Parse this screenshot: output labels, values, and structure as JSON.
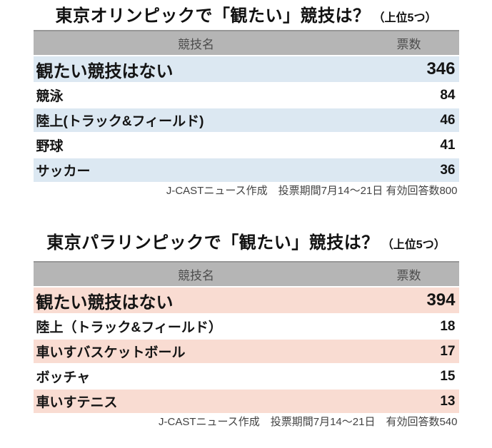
{
  "colors": {
    "olympic_accent": "#dce8f2",
    "paralympic_accent": "#f9dcd2",
    "header_bg": "#b5b5b5",
    "header_border": "#979797",
    "header_text": "#4c4c4c",
    "text": "#141414",
    "note_text": "#424242"
  },
  "chart_data": [
    {
      "type": "table",
      "title": "東京オリンピックで「観たい」競技は？",
      "title_note": "（上位5つ）",
      "columns": {
        "name": "競技名",
        "votes": "票数"
      },
      "accent": "#dce8f2",
      "rows": [
        {
          "name": "観たい競技はない",
          "votes": "346"
        },
        {
          "name": "競泳",
          "votes": "84"
        },
        {
          "name": "陸上(トラック&フィールド)",
          "votes": "46"
        },
        {
          "name": "野球",
          "votes": "41"
        },
        {
          "name": "サッカー",
          "votes": "36"
        }
      ],
      "footer": "J-CASTニュース作成　投票期間7月14〜21日 有効回答数800"
    },
    {
      "type": "table",
      "title": "東京パラリンピックで「観たい」競技は？",
      "title_note": "（上位5つ）",
      "columns": {
        "name": "競技名",
        "votes": "票数"
      },
      "accent": "#f9dcd2",
      "rows": [
        {
          "name": "観たい競技はない",
          "votes": "394"
        },
        {
          "name": "陸上（トラック&フィールド）",
          "votes": "18"
        },
        {
          "name": "車いすバスケットボール",
          "votes": "17"
        },
        {
          "name": "ボッチャ",
          "votes": "15"
        },
        {
          "name": "車いすテニス",
          "votes": "13"
        }
      ],
      "footer": "J-CASTニュース作成　投票期間7月14〜21日　有効回答数540"
    }
  ]
}
